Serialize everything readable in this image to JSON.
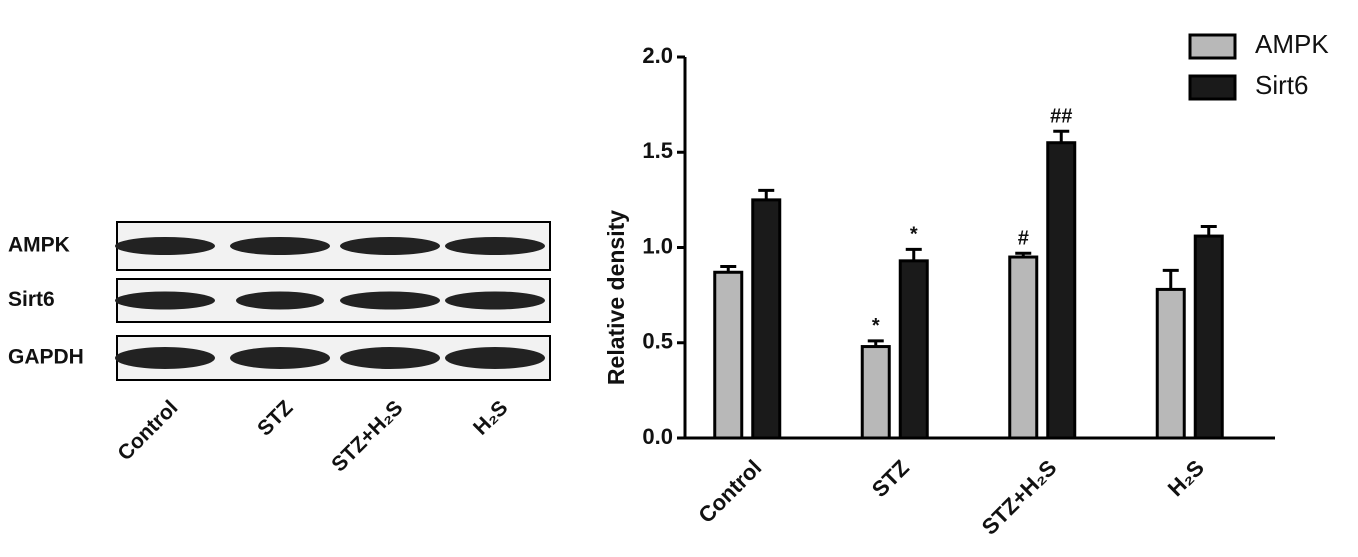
{
  "blot": {
    "rows": [
      "AMPK",
      "Sirt6",
      "GAPDH"
    ],
    "lanes": [
      "Control",
      "STZ",
      "STZ+H₂S",
      "H₂S"
    ]
  },
  "chart_data": {
    "type": "bar",
    "y_label": "Relative density",
    "categories": [
      "Control",
      "STZ",
      "STZ+H₂S",
      "H₂S"
    ],
    "series": [
      {
        "name": "AMPK",
        "color": "#b8b8b8",
        "values": [
          0.87,
          0.48,
          0.95,
          0.78
        ],
        "errors": [
          0.03,
          0.03,
          0.02,
          0.1
        ],
        "annotations": [
          null,
          "*",
          "#",
          null
        ]
      },
      {
        "name": "Sirt6",
        "color": "#1a1a1a",
        "values": [
          1.25,
          0.93,
          1.55,
          1.06
        ],
        "errors": [
          0.05,
          0.06,
          0.06,
          0.05
        ],
        "annotations": [
          null,
          "*",
          "##",
          null
        ]
      }
    ],
    "ylim": [
      0,
      2
    ],
    "yticks": [
      {
        "value": 0,
        "label": "0.0"
      },
      0.5,
      {
        "value": 1,
        "label": "1.0"
      },
      1.5,
      {
        "value": 2,
        "label": "2.0"
      }
    ],
    "legend": "top-right"
  }
}
